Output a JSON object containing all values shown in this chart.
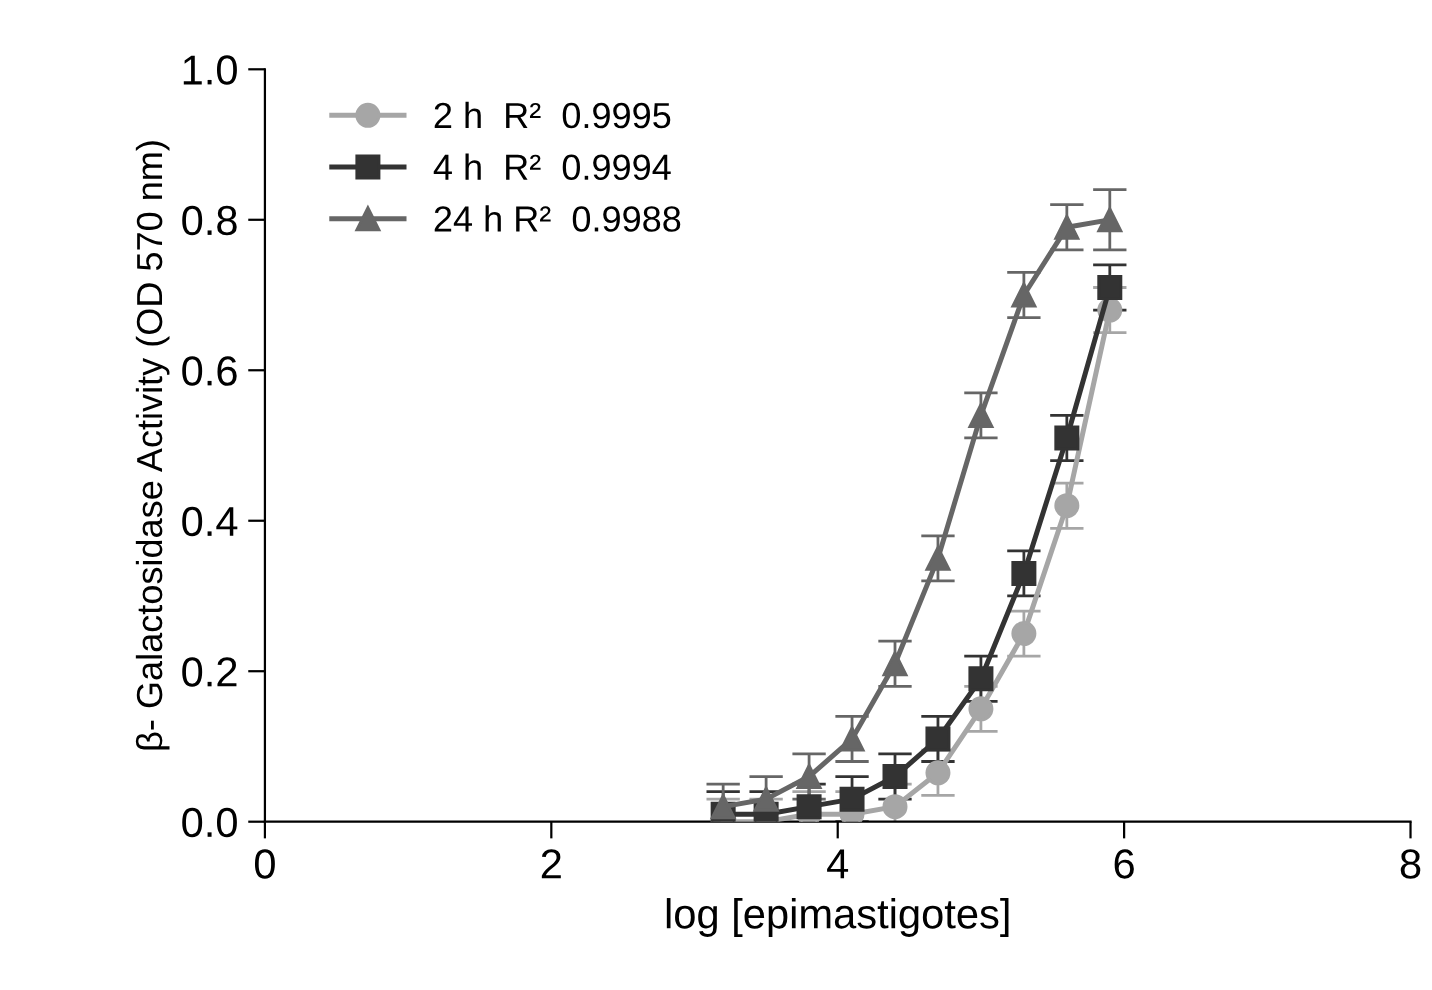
{
  "chart_data": {
    "type": "line",
    "xlabel": "log [epimastigotes]",
    "ylabel": "β- Galactosidase Activity (OD 570 nm)",
    "xlim": [
      0,
      8
    ],
    "xticks": [
      0,
      2,
      4,
      6,
      8
    ],
    "ylim": [
      0,
      1.0
    ],
    "yticks": [
      {
        "value": 0,
        "label": "0.0"
      },
      {
        "value": 0.2,
        "label": "0.2"
      },
      {
        "value": 0.4,
        "label": "0.4"
      },
      {
        "value": 0.6,
        "label": "0.6"
      },
      {
        "value": 0.8,
        "label": "0.8"
      },
      {
        "value": 1.0,
        "label": "1.0"
      }
    ],
    "x": [
      3.2,
      3.5,
      3.8,
      4.1,
      4.4,
      4.7,
      5.0,
      5.3,
      5.6,
      5.9
    ],
    "series": [
      {
        "name": "2 h  R²  0.9995",
        "color": "#a6a6a6",
        "marker": "circle",
        "values": [
          0.0,
          0.0,
          0.01,
          0.01,
          0.02,
          0.065,
          0.15,
          0.25,
          0.42,
          0.68
        ],
        "errors": [
          0.03,
          0.03,
          0.03,
          0.03,
          0.03,
          0.03,
          0.03,
          0.03,
          0.03,
          0.03
        ]
      },
      {
        "name": "4 h  R²  0.9994",
        "color": "#333333",
        "marker": "square",
        "values": [
          0.01,
          0.01,
          0.02,
          0.03,
          0.06,
          0.11,
          0.19,
          0.33,
          0.51,
          0.71
        ],
        "errors": [
          0.03,
          0.03,
          0.03,
          0.03,
          0.03,
          0.03,
          0.03,
          0.03,
          0.03,
          0.03
        ]
      },
      {
        "name": "24 h R²  0.9988",
        "color": "#666666",
        "marker": "triangle",
        "values": [
          0.02,
          0.03,
          0.06,
          0.11,
          0.21,
          0.35,
          0.54,
          0.7,
          0.79,
          0.8
        ],
        "errors": [
          0.03,
          0.03,
          0.03,
          0.03,
          0.03,
          0.03,
          0.03,
          0.03,
          0.03,
          0.04
        ]
      }
    ],
    "legend": "top left",
    "grid": false
  }
}
